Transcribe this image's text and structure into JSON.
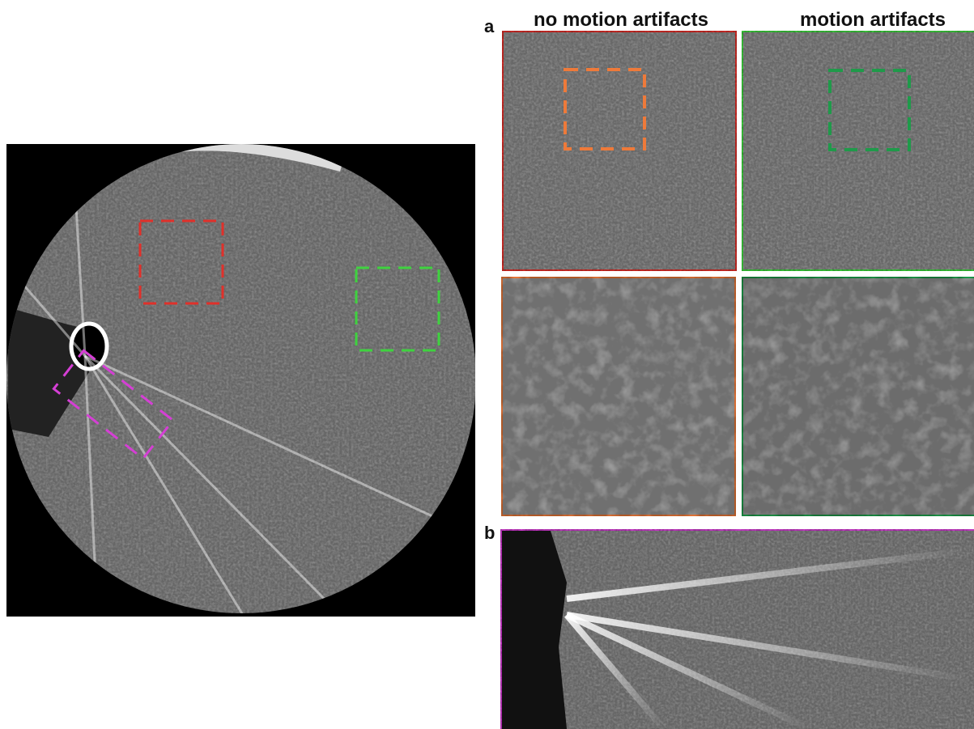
{
  "panel_a": {
    "label": "a",
    "columns": [
      "no motion artifacts",
      "motion artifacts"
    ]
  },
  "panel_b": {
    "label": "b"
  }
}
